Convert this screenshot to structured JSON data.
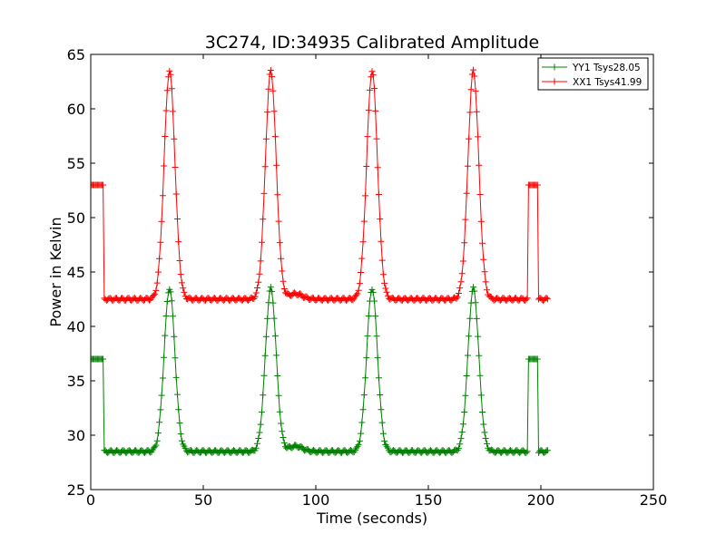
{
  "chart_data": {
    "type": "line",
    "title": "3C274, ID:34935 Calibrated Amplitude",
    "xlabel": "Time (seconds)",
    "ylabel": "Power in Kelvin",
    "xlim": [
      0,
      250
    ],
    "ylim": [
      25,
      65
    ],
    "xticks": [
      0,
      50,
      100,
      150,
      200,
      250
    ],
    "yticks": [
      25,
      30,
      35,
      40,
      45,
      50,
      55,
      60,
      65
    ],
    "grid": false,
    "legend_position": "top-right",
    "marker": "+",
    "sample_interval": 0.5,
    "x_range": [
      0,
      203
    ],
    "series": [
      {
        "name": "YY1 Tsys28.05",
        "color": "#008000",
        "baseline": 28.5,
        "on_source_level": 37.0,
        "on_source_intervals": [
          [
            0,
            5.5
          ],
          [
            194.5,
            198.5
          ]
        ],
        "peaks": [
          {
            "x": 35,
            "y": 43.5
          },
          {
            "x": 80,
            "y": 43.5
          },
          {
            "x": 125,
            "y": 43.5
          },
          {
            "x": 170,
            "y": 43.5
          }
        ],
        "bump": {
          "x": 91,
          "y": 29.0
        }
      },
      {
        "name": "XX1 Tsys41.99",
        "color": "#ff0000",
        "baseline": 42.5,
        "on_source_level": 53.0,
        "on_source_intervals": [
          [
            0,
            5.5
          ],
          [
            194.5,
            198.5
          ]
        ],
        "peaks": [
          {
            "x": 35,
            "y": 63.5
          },
          {
            "x": 80,
            "y": 63.5
          },
          {
            "x": 125,
            "y": 63.5
          },
          {
            "x": 170,
            "y": 63.5
          }
        ],
        "bump": {
          "x": 91,
          "y": 43.0
        }
      }
    ]
  }
}
